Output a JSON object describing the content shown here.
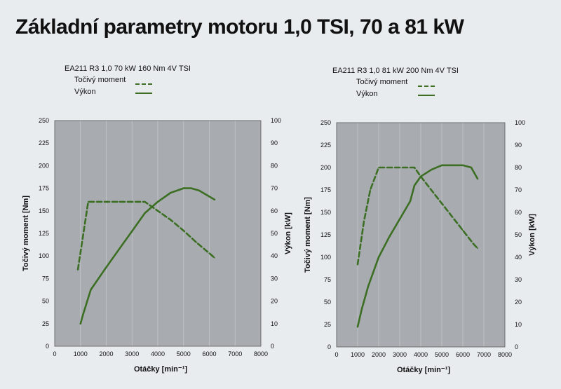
{
  "title": "Základní parametry motoru 1,0 TSI, 70 a 81 kW",
  "colors": {
    "background": "#e8ecef",
    "plot_area": "#a8acb0",
    "torque_line": "#3c6e24",
    "power_line": "#3c6e24",
    "text": "#111111"
  },
  "chart_data": [
    {
      "type": "line",
      "title": "EA211 R3 1,0 70 kW 160 Nm 4V TSI",
      "xlabel": "Otáčky [min⁻¹]",
      "ylabel": "Točivý moment [Nm]",
      "y2label": "Výkon [kW]",
      "xlim": [
        0,
        8000
      ],
      "ylim": [
        0,
        250
      ],
      "y2lim": [
        0,
        100
      ],
      "xticks": [
        "0",
        "1000",
        "2000",
        "3000",
        "4000",
        "5000",
        "6000",
        "7000",
        "8000"
      ],
      "yticks": [
        "0",
        "25",
        "50",
        "75",
        "100",
        "125",
        "150",
        "175",
        "200",
        "225",
        "250"
      ],
      "y2ticks": [
        "0",
        "10",
        "20",
        "30",
        "40",
        "50",
        "60",
        "70",
        "80",
        "90",
        "100"
      ],
      "grid": true,
      "legend": [
        "Točivý moment",
        "Výkon"
      ],
      "series": [
        {
          "name": "Točivý moment",
          "style": "dashed",
          "axis": "left",
          "x": [
            900,
            1300,
            1800,
            2500,
            3000,
            3500,
            4000,
            4500,
            5000,
            5500,
            6000,
            6200
          ],
          "y": [
            85,
            160,
            160,
            160,
            160,
            160,
            150,
            140,
            128,
            115,
            103,
            98
          ]
        },
        {
          "name": "Výkon",
          "style": "solid",
          "axis": "right",
          "x": [
            1000,
            1100,
            1400,
            2000,
            2500,
            3000,
            3500,
            4000,
            4500,
            5000,
            5300,
            5600,
            6200
          ],
          "y": [
            10,
            14,
            25,
            35,
            43,
            51,
            59,
            64,
            68,
            70,
            70,
            69,
            65
          ]
        }
      ]
    },
    {
      "type": "line",
      "title": "EA211 R3 1,0 81 kW 200 Nm 4V TSI",
      "xlabel": "Otáčky [min⁻¹]",
      "ylabel": "Točivý moment [Nm]",
      "y2label": "Výkon [kW]",
      "xlim": [
        0,
        8000
      ],
      "ylim": [
        0,
        250
      ],
      "y2lim": [
        0,
        100
      ],
      "xticks": [
        "0",
        "1000",
        "2000",
        "3000",
        "4000",
        "5000",
        "6000",
        "7000",
        "8000"
      ],
      "yticks": [
        "0",
        "25",
        "50",
        "75",
        "100",
        "125",
        "150",
        "175",
        "200",
        "225",
        "250"
      ],
      "y2ticks": [
        "0",
        "10",
        "20",
        "30",
        "40",
        "50",
        "60",
        "70",
        "80",
        "90",
        "100"
      ],
      "grid": true,
      "legend": [
        "Točivý moment",
        "Výkon"
      ],
      "series": [
        {
          "name": "Točivý moment",
          "style": "dashed",
          "axis": "left",
          "x": [
            1000,
            1300,
            1600,
            2000,
            2500,
            3000,
            3500,
            3700,
            4000,
            4500,
            5000,
            5500,
            6000,
            6500,
            6700
          ],
          "y": [
            92,
            140,
            175,
            200,
            200,
            200,
            200,
            200,
            190,
            175,
            160,
            145,
            130,
            115,
            110
          ]
        },
        {
          "name": "Výkon",
          "style": "solid",
          "axis": "right",
          "x": [
            1000,
            1200,
            1500,
            2000,
            2500,
            3000,
            3500,
            3700,
            4000,
            4500,
            5000,
            5500,
            6000,
            6400,
            6700
          ],
          "y": [
            9,
            17,
            27,
            40,
            49,
            57,
            65,
            72,
            76,
            79,
            81,
            81,
            81,
            80,
            75
          ]
        }
      ]
    }
  ]
}
